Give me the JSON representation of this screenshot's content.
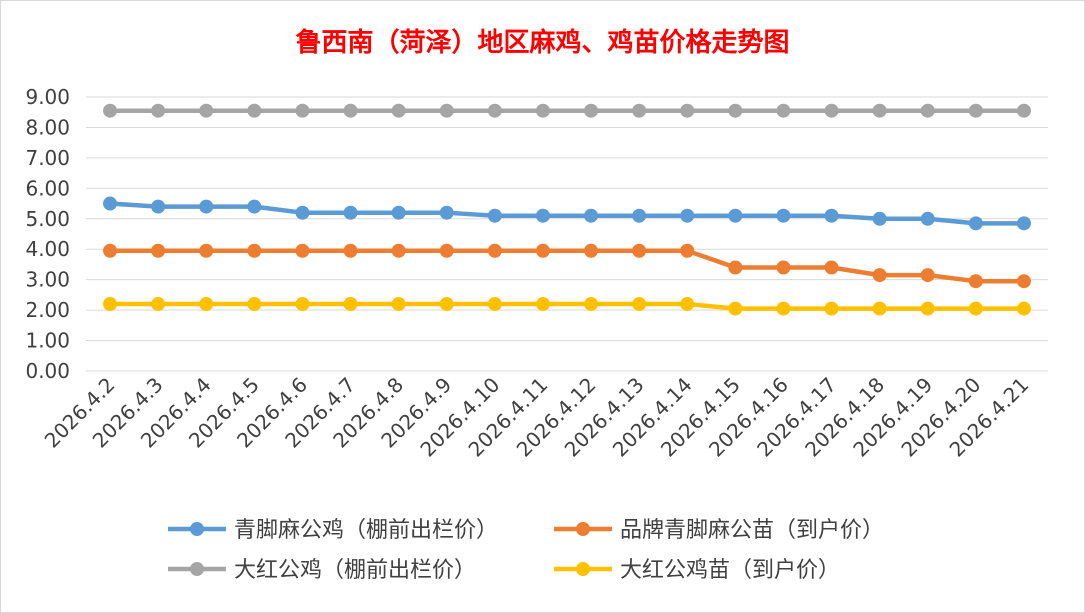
{
  "chart_data": {
    "type": "line",
    "title": "鲁西南（菏泽）地区麻鸡、鸡苗价格走势图",
    "xlabel": "",
    "ylabel": "",
    "ylim": [
      0,
      9
    ],
    "grid": true,
    "legend_position": "bottom",
    "y_ticks": [
      "0.00",
      "1.00",
      "2.00",
      "3.00",
      "4.00",
      "5.00",
      "6.00",
      "7.00",
      "8.00",
      "9.00"
    ],
    "categories": [
      "2026.4.2",
      "2026.4.3",
      "2026.4.4",
      "2026.4.5",
      "2026.4.6",
      "2026.4.7",
      "2026.4.8",
      "2026.4.9",
      "2026.4.10",
      "2026.4.11",
      "2026.4.12",
      "2026.4.13",
      "2026.4.14",
      "2026.4.15",
      "2026.4.16",
      "2026.4.17",
      "2026.4.18",
      "2026.4.19",
      "2026.4.20",
      "2026.4.21"
    ],
    "series": [
      {
        "name": "青脚麻公鸡（棚前出栏价）",
        "color": "#5b9bd5",
        "values": [
          5.5,
          5.4,
          5.4,
          5.4,
          5.2,
          5.2,
          5.2,
          5.2,
          5.1,
          5.1,
          5.1,
          5.1,
          5.1,
          5.1,
          5.1,
          5.1,
          5.0,
          5.0,
          4.85,
          4.85
        ]
      },
      {
        "name": "品牌青脚麻公苗（到户价）",
        "color": "#ed7d31",
        "values": [
          3.95,
          3.95,
          3.95,
          3.95,
          3.95,
          3.95,
          3.95,
          3.95,
          3.95,
          3.95,
          3.95,
          3.95,
          3.95,
          3.4,
          3.4,
          3.4,
          3.15,
          3.15,
          2.95,
          2.95
        ]
      },
      {
        "name": "大红公鸡（棚前出栏价）",
        "color": "#a5a5a5",
        "values": [
          8.55,
          8.55,
          8.55,
          8.55,
          8.55,
          8.55,
          8.55,
          8.55,
          8.55,
          8.55,
          8.55,
          8.55,
          8.55,
          8.55,
          8.55,
          8.55,
          8.55,
          8.55,
          8.55,
          8.55
        ]
      },
      {
        "name": "大红公鸡苗（到户价）",
        "color": "#ffc000",
        "values": [
          2.2,
          2.2,
          2.2,
          2.2,
          2.2,
          2.2,
          2.2,
          2.2,
          2.2,
          2.2,
          2.2,
          2.2,
          2.2,
          2.05,
          2.05,
          2.05,
          2.05,
          2.05,
          2.05,
          2.05
        ]
      }
    ]
  }
}
